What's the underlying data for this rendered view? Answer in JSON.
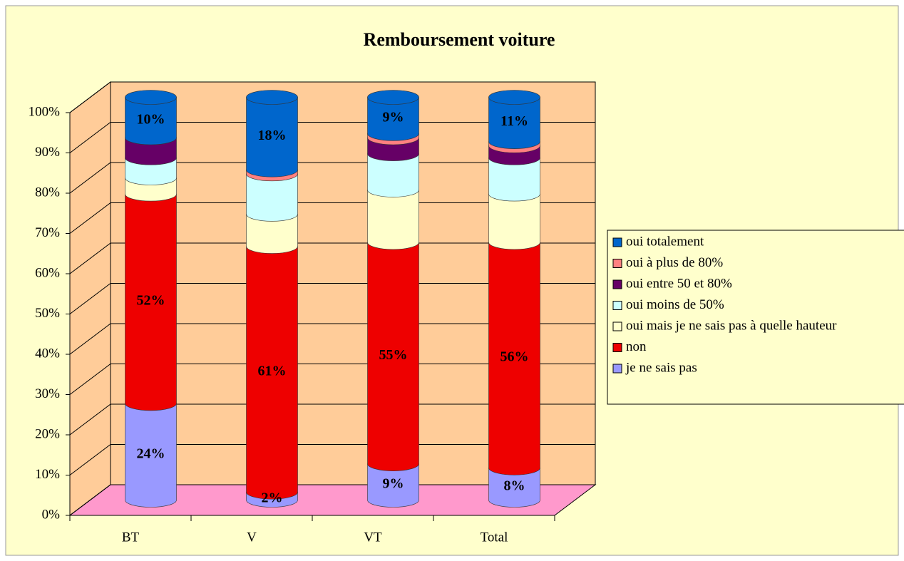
{
  "chart_data": {
    "type": "bar3d_stacked",
    "title": "Remboursement voiture",
    "categories": [
      "BT",
      "V",
      "VT",
      "Total"
    ],
    "series": [
      {
        "name": "je ne sais pas",
        "color": "#9999ff",
        "values": [
          24,
          2,
          9,
          8
        ],
        "value_labels": [
          "24%",
          "2%",
          "9%",
          "8%"
        ]
      },
      {
        "name": "non",
        "color": "#ee0000",
        "values": [
          52,
          61,
          55,
          56
        ],
        "value_labels": [
          "52%",
          "61%",
          "55%",
          "56%"
        ]
      },
      {
        "name": "oui mais je ne sais pas à quelle hauteur",
        "color": "#ffffcc",
        "values": [
          4,
          8,
          13,
          12
        ],
        "value_labels": [
          null,
          null,
          null,
          null
        ]
      },
      {
        "name": "oui moins de 50%",
        "color": "#ccffff",
        "values": [
          5,
          10,
          9,
          9
        ],
        "value_labels": [
          null,
          null,
          null,
          null
        ]
      },
      {
        "name": "oui entre 50 et 80%",
        "color": "#660066",
        "values": [
          5,
          0,
          4,
          3
        ],
        "value_labels": [
          null,
          null,
          null,
          null
        ]
      },
      {
        "name": "oui à plus de 80%",
        "color": "#ff8080",
        "values": [
          0,
          1,
          1,
          1
        ],
        "value_labels": [
          null,
          null,
          null,
          null
        ]
      },
      {
        "name": "oui totalement",
        "color": "#0066cc",
        "values": [
          10,
          18,
          9,
          11
        ],
        "value_labels": [
          "10%",
          "18%",
          "9%",
          "11%"
        ]
      }
    ],
    "ylim": [
      0,
      100
    ],
    "yticks": [
      {
        "value": 0,
        "label": "0%"
      },
      {
        "value": 10,
        "label": "10%"
      },
      {
        "value": 20,
        "label": "20%"
      },
      {
        "value": 30,
        "label": "30%"
      },
      {
        "value": 40,
        "label": "40%"
      },
      {
        "value": 50,
        "label": "50%"
      },
      {
        "value": 60,
        "label": "60%"
      },
      {
        "value": 70,
        "label": "70%"
      },
      {
        "value": 80,
        "label": "80%"
      },
      {
        "value": 90,
        "label": "90%"
      },
      {
        "value": 100,
        "label": "100%"
      }
    ],
    "grid": true,
    "legend": "right"
  }
}
